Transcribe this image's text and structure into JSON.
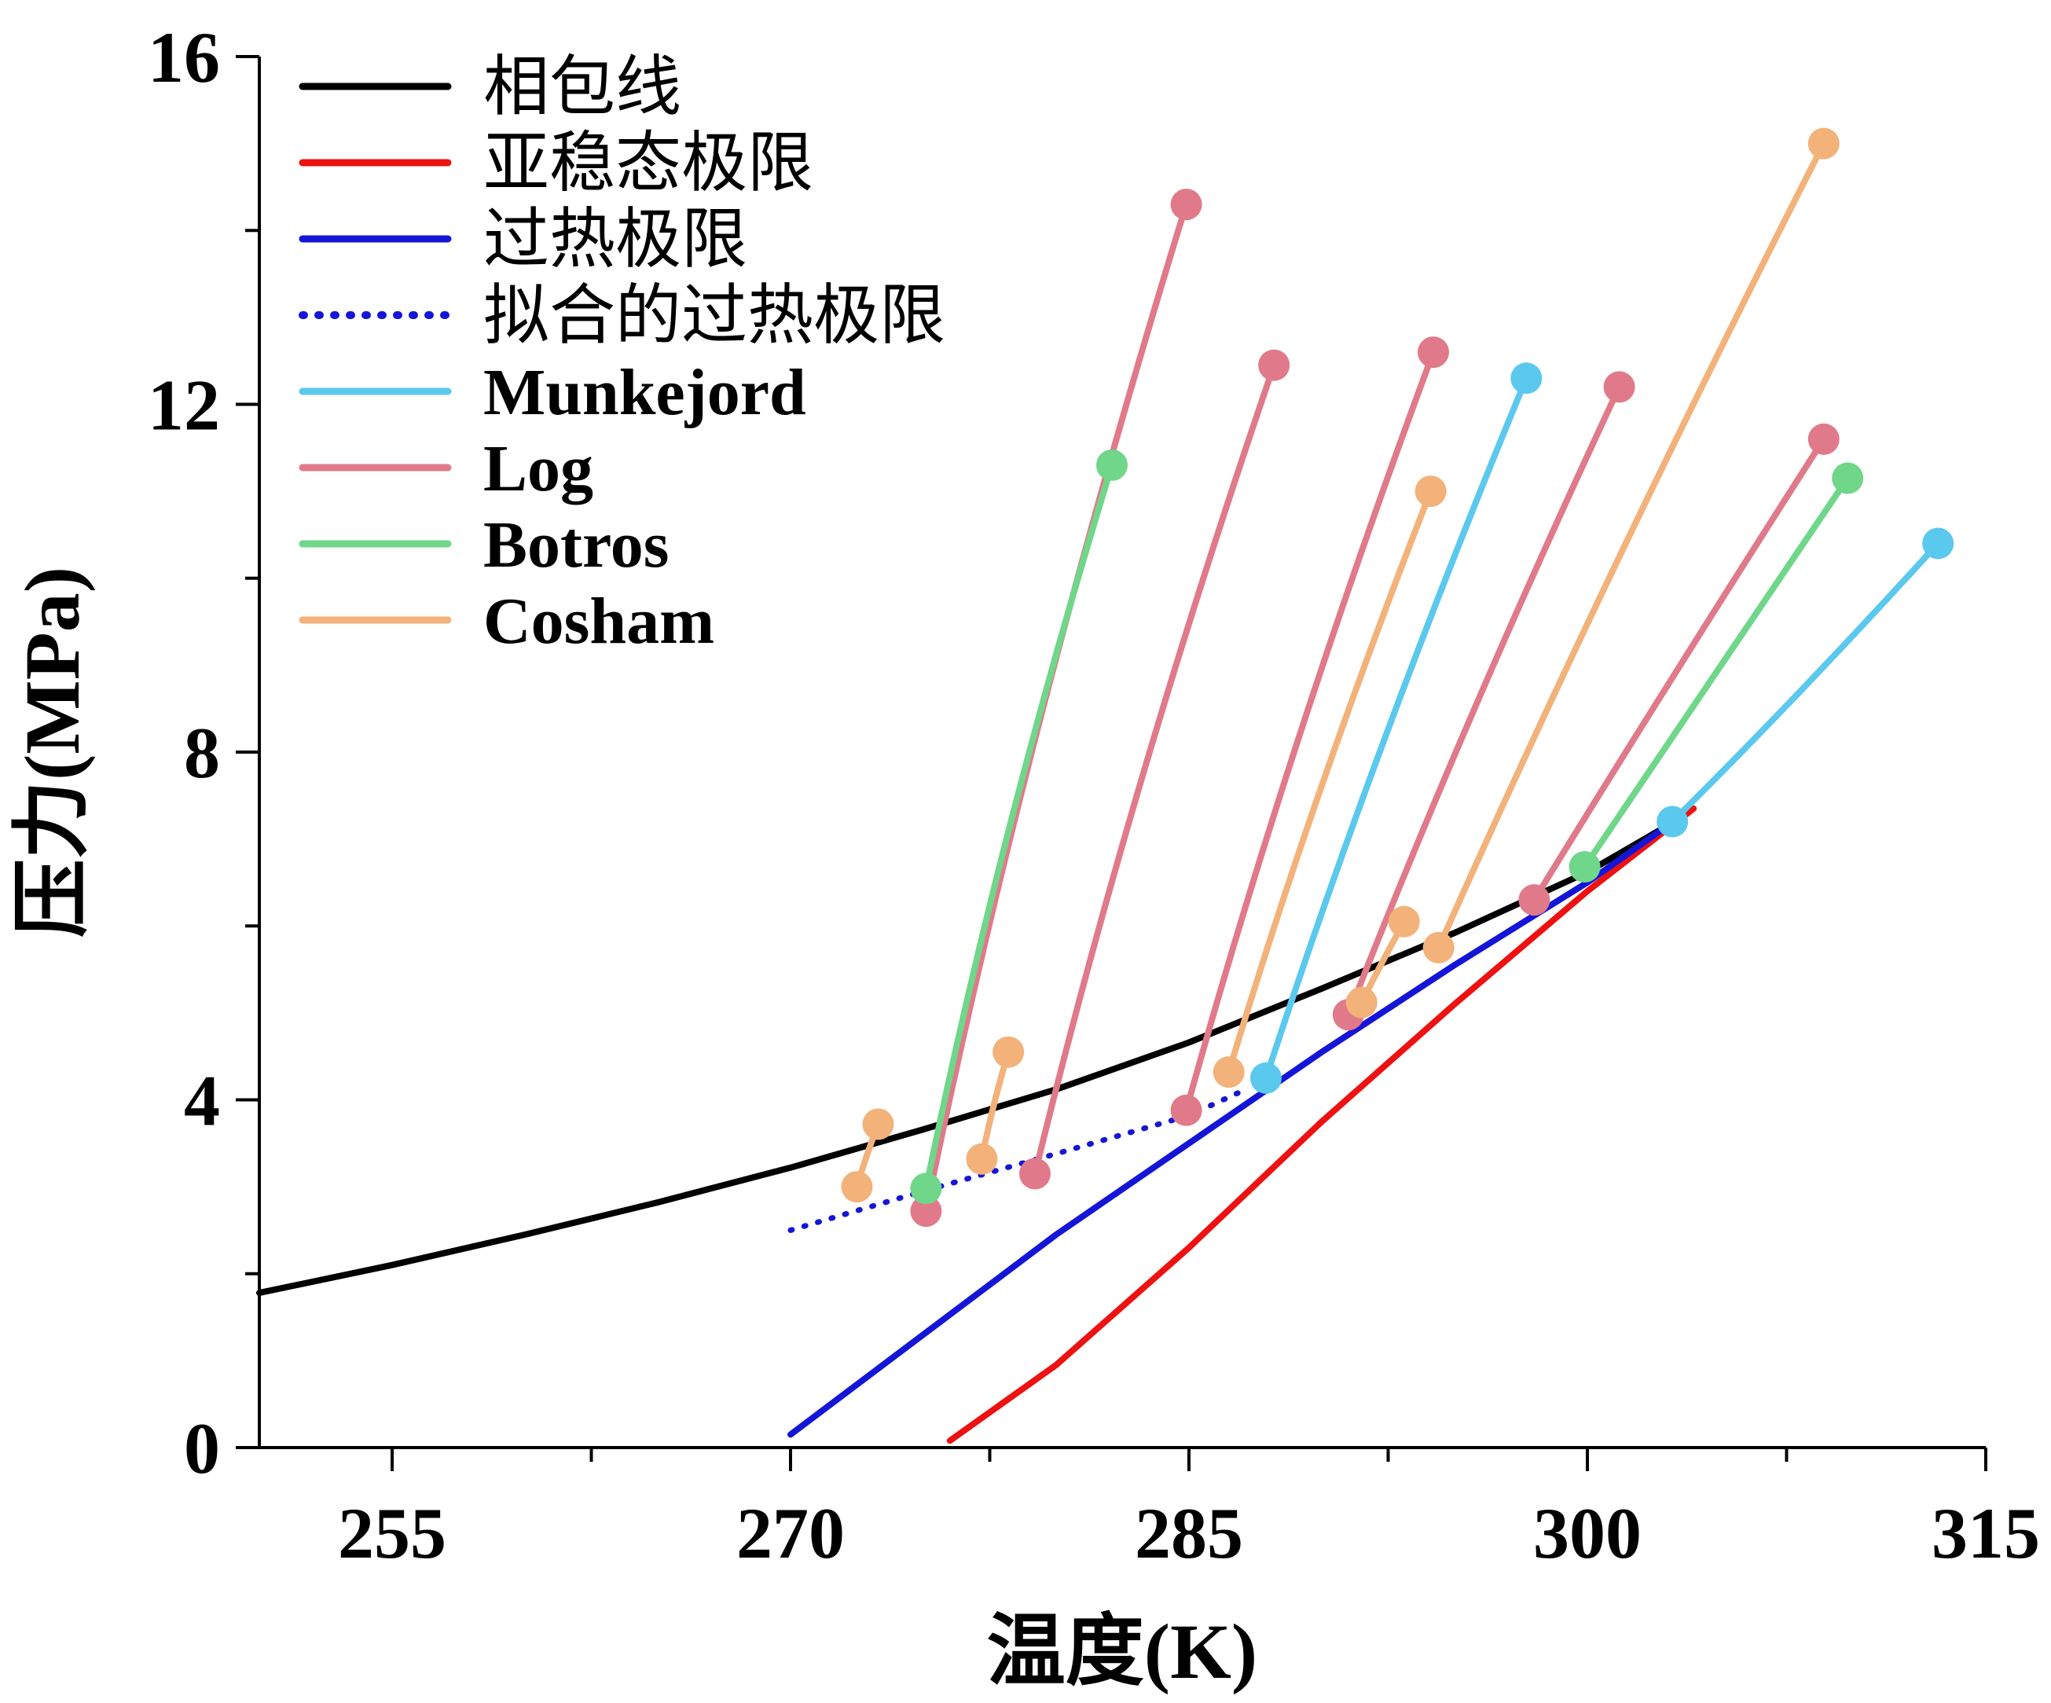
{
  "chart_data": {
    "type": "line",
    "title": "",
    "xlabel": "温度(K)",
    "ylabel": "压力(MPa)",
    "xlim": [
      250,
      315
    ],
    "ylim": [
      0,
      16
    ],
    "xticks": [
      255,
      270,
      285,
      300,
      315
    ],
    "yticks": [
      0,
      4,
      8,
      12,
      16
    ],
    "x_minor_ticks": [
      262.5,
      277.5,
      292.5,
      307.5
    ],
    "y_minor_ticks": [
      2,
      6,
      10,
      14
    ],
    "legend_position": "top-left",
    "colors": {
      "envelope": "#000000",
      "spinodal": "#ee1111",
      "superheat": "#1515d8",
      "fitted": "#1515d8",
      "Munkejord": "#5bc8ee",
      "Log": "#e07a8a",
      "Botros": "#6fd68a",
      "Cosham": "#f2b27a"
    },
    "legend": [
      {
        "key": "envelope",
        "label": "相包线",
        "style": "solid"
      },
      {
        "key": "spinodal",
        "label": "亚稳态极限",
        "style": "solid"
      },
      {
        "key": "superheat",
        "label": "过热极限",
        "style": "solid"
      },
      {
        "key": "fitted",
        "label": "拟合的过热极限",
        "style": "dotted"
      },
      {
        "key": "Munkejord",
        "label": "Munkejord",
        "style": "solid"
      },
      {
        "key": "Log",
        "label": "Log",
        "style": "solid"
      },
      {
        "key": "Botros",
        "label": "Botros",
        "style": "solid"
      },
      {
        "key": "Cosham",
        "label": "Cosham",
        "style": "solid"
      }
    ],
    "reference_series": [
      {
        "key": "envelope",
        "name": "相包线",
        "style": "solid",
        "points": [
          [
            250,
            1.78
          ],
          [
            255,
            2.1
          ],
          [
            260,
            2.45
          ],
          [
            265,
            2.82
          ],
          [
            270,
            3.22
          ],
          [
            275,
            3.66
          ],
          [
            280,
            4.12
          ],
          [
            285,
            4.66
          ],
          [
            290,
            5.28
          ],
          [
            295,
            5.92
          ],
          [
            300,
            6.62
          ],
          [
            303,
            7.15
          ]
        ]
      },
      {
        "key": "spinodal",
        "name": "亚稳态极限",
        "style": "solid",
        "points": [
          [
            276,
            0.08
          ],
          [
            280,
            0.95
          ],
          [
            285,
            2.3
          ],
          [
            290,
            3.75
          ],
          [
            295,
            5.1
          ],
          [
            300,
            6.4
          ],
          [
            304,
            7.35
          ]
        ]
      },
      {
        "key": "superheat",
        "name": "过热极限",
        "style": "solid",
        "points": [
          [
            270,
            0.15
          ],
          [
            275,
            1.3
          ],
          [
            280,
            2.45
          ],
          [
            285,
            3.5
          ],
          [
            290,
            4.55
          ],
          [
            295,
            5.55
          ],
          [
            300,
            6.5
          ],
          [
            303,
            7.15
          ]
        ]
      },
      {
        "key": "fitted",
        "name": "拟合的过热极限",
        "style": "dotted",
        "points": [
          [
            270,
            2.5
          ],
          [
            275,
            2.95
          ],
          [
            280,
            3.38
          ],
          [
            285,
            3.82
          ],
          [
            287,
            4.1
          ]
        ]
      }
    ],
    "model_curves": [
      {
        "model": "Log",
        "start": [
          275.1,
          2.72
        ],
        "end": [
          284.9,
          14.3
        ]
      },
      {
        "model": "Log",
        "start": [
          279.2,
          3.15
        ],
        "end": [
          288.2,
          12.45
        ]
      },
      {
        "model": "Log",
        "start": [
          284.9,
          3.88
        ],
        "end": [
          294.2,
          12.6
        ]
      },
      {
        "model": "Log",
        "start": [
          291.0,
          4.98
        ],
        "end": [
          301.2,
          12.2
        ]
      },
      {
        "model": "Log",
        "start": [
          298.0,
          6.3
        ],
        "end": [
          308.9,
          11.6
        ]
      },
      {
        "model": "Botros",
        "start": [
          275.1,
          2.98
        ],
        "end": [
          282.1,
          11.3
        ]
      },
      {
        "model": "Botros",
        "start": [
          299.9,
          6.68
        ],
        "end": [
          309.8,
          11.15
        ]
      },
      {
        "model": "Munkejord",
        "start": [
          287.9,
          4.25
        ],
        "end": [
          297.7,
          12.3
        ]
      },
      {
        "model": "Munkejord",
        "start": [
          303.2,
          7.2
        ],
        "end": [
          313.2,
          10.4
        ]
      },
      {
        "model": "Cosham",
        "start": [
          272.5,
          3.0
        ],
        "end": [
          273.3,
          3.72
        ]
      },
      {
        "model": "Cosham",
        "start": [
          277.2,
          3.32
        ],
        "end": [
          278.2,
          4.55
        ]
      },
      {
        "model": "Cosham",
        "start": [
          286.5,
          4.32
        ],
        "end": [
          294.1,
          11.0
        ]
      },
      {
        "model": "Cosham",
        "start": [
          291.5,
          5.12
        ],
        "end": [
          293.1,
          6.05
        ]
      },
      {
        "model": "Cosham",
        "start": [
          294.4,
          5.75
        ],
        "end": [
          308.9,
          15.0
        ]
      }
    ]
  }
}
